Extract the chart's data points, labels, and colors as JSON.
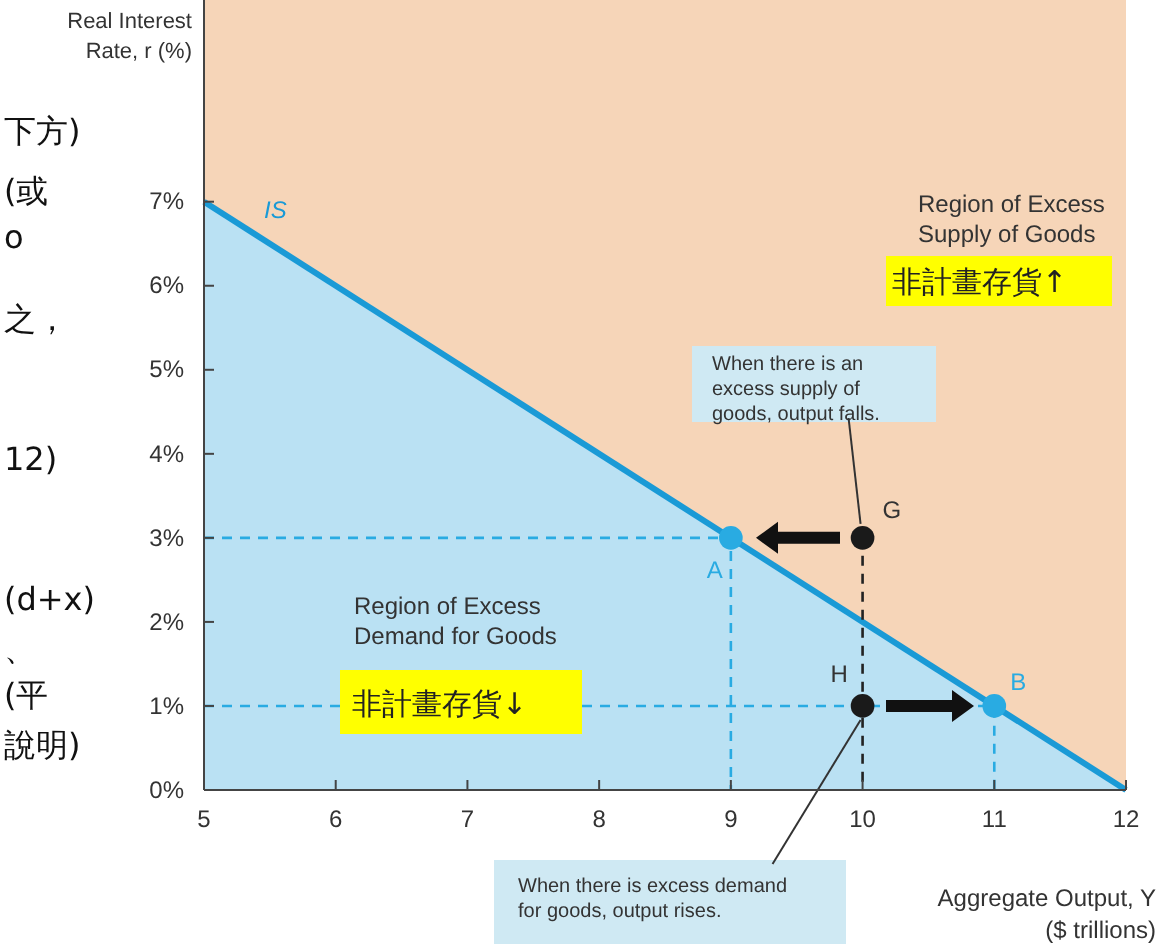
{
  "chart_data": {
    "type": "area",
    "xlabel": "Aggregate Output, Y\n($ trillions)",
    "xlim": [
      5,
      12
    ],
    "xticks": [
      5,
      6,
      7,
      8,
      9,
      10,
      11,
      12
    ],
    "ylim": [
      0,
      9.4
    ],
    "yticks": [
      {
        "value": 0,
        "label": "0%"
      },
      {
        "value": 1,
        "label": "1%"
      },
      {
        "value": 2,
        "label": "2%"
      },
      {
        "value": 3,
        "label": "3%"
      },
      {
        "value": 4,
        "label": "4%"
      },
      {
        "value": 5,
        "label": "5%"
      },
      {
        "value": 6,
        "label": "6%"
      },
      {
        "value": 7,
        "label": "7%"
      }
    ],
    "grid": false,
    "legend": false,
    "series": [
      {
        "name": "IS",
        "color": "#1a9ad6",
        "x": [
          5,
          12
        ],
        "values": [
          7,
          0
        ]
      },
      {
        "type": "line",
        "line_style": "dashed",
        "color": "#29abe2",
        "x": [
          5,
          9,
          9
        ],
        "values": [
          3,
          3,
          0
        ]
      },
      {
        "type": "line",
        "line_style": "dashed",
        "color": "#29abe2",
        "x": [
          5,
          11,
          11
        ],
        "values": [
          1,
          1,
          0
        ]
      },
      {
        "type": "line",
        "line_style": "dashed",
        "color": "#222222",
        "x": [
          10,
          10
        ],
        "values": [
          3,
          0
        ]
      },
      {
        "type": "scatter",
        "marker": "circle",
        "color": "#29abe2",
        "x": [
          9,
          11
        ],
        "values": [
          3,
          1
        ]
      },
      {
        "type": "scatter",
        "marker": "circle",
        "color": "#1a1a1a",
        "x": [
          10,
          10
        ],
        "values": [
          3,
          1
        ]
      }
    ],
    "annotations": [
      "Region of Excess\nSupply of Goods",
      "非計畫存貨↑",
      {
        "text": "When there is an\nexcess supply of\ngoods, output falls.",
        "x": 10,
        "y": 3
      },
      "Region of Excess\nDemand for Goods",
      "非計畫存貨↓",
      {
        "text": "When there is excess demand\nfor goods, output rises.",
        "x": 10,
        "y": 1
      },
      "下方)",
      "(或",
      "o",
      "之，",
      "12)",
      "(d+x)",
      "、",
      "(平",
      "說明)",
      {
        "text": "A",
        "x": 9,
        "y": 3
      },
      {
        "text": "B",
        "x": 11,
        "y": 1
      },
      {
        "text": "G",
        "x": 10,
        "y": 3
      },
      {
        "text": "H",
        "x": 10,
        "y": 1
      },
      "Real Interest\nRate, r (%)"
    ]
  }
}
